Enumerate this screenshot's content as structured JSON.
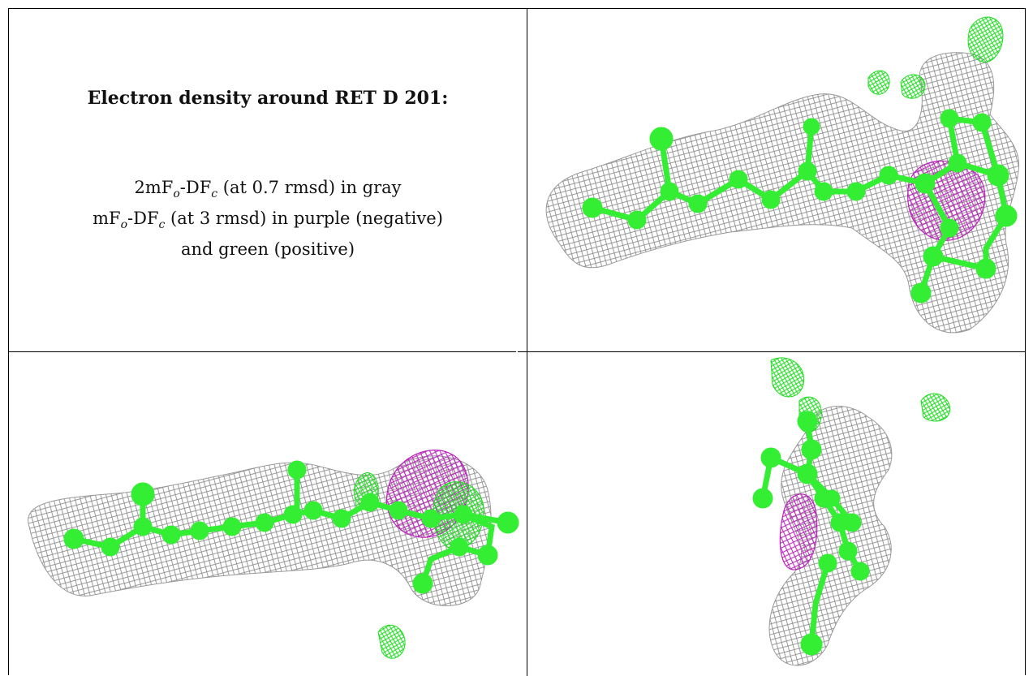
{
  "title": "Electron density around RET D 201:",
  "legend": {
    "line1": {
      "prefix": "2mF",
      "sub1": "o",
      "mid": "-DF",
      "sub2": "c",
      "rest": " (at 0.7 rmsd) in gray"
    },
    "line2": {
      "prefix": "mF",
      "sub1": "o",
      "mid": "-DF",
      "sub2": "c",
      "rest": " (at 3 rmsd) in purple (negative)"
    },
    "line3": "and green (positive)"
  },
  "colors": {
    "mesh_gray": "#8c8c8c",
    "model_green": "#33ee33",
    "negative_purple": "#bb22bb",
    "positive_green": "#22dd22"
  }
}
